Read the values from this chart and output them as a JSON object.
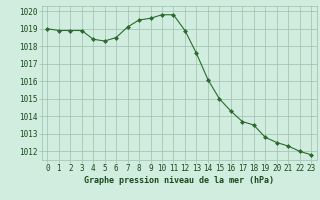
{
  "x": [
    0,
    1,
    2,
    3,
    4,
    5,
    6,
    7,
    8,
    9,
    10,
    11,
    12,
    13,
    14,
    15,
    16,
    17,
    18,
    19,
    20,
    21,
    22,
    23
  ],
  "y": [
    1019.0,
    1018.9,
    1018.9,
    1018.9,
    1018.4,
    1018.3,
    1018.5,
    1019.1,
    1019.5,
    1019.6,
    1019.8,
    1019.8,
    1018.9,
    1017.6,
    1016.1,
    1015.0,
    1014.3,
    1013.7,
    1013.5,
    1012.8,
    1012.5,
    1012.3,
    1012.0,
    1011.8
  ],
  "line_color": "#2d6a2d",
  "marker": "D",
  "marker_size": 2.0,
  "bg_color": "#d0ede0",
  "grid_color": "#9dbfad",
  "xlabel": "Graphe pression niveau de la mer (hPa)",
  "xlabel_color": "#1a4a1a",
  "tick_color": "#1a4a1a",
  "ylim_min": 1011.5,
  "ylim_max": 1020.3,
  "xlim_min": -0.5,
  "xlim_max": 23.5,
  "yticks": [
    1012,
    1013,
    1014,
    1015,
    1016,
    1017,
    1018,
    1019,
    1020
  ],
  "xticks": [
    0,
    1,
    2,
    3,
    4,
    5,
    6,
    7,
    8,
    9,
    10,
    11,
    12,
    13,
    14,
    15,
    16,
    17,
    18,
    19,
    20,
    21,
    22,
    23
  ],
  "tick_fontsize": 5.5,
  "xlabel_fontsize": 6.0,
  "line_width": 0.8
}
